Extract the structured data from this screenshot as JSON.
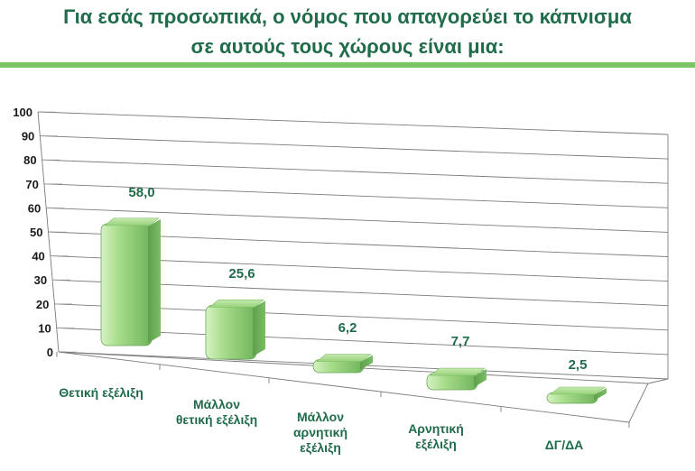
{
  "page": {
    "title_line1": "Για εσάς προσωπικά, ο νόμος που απαγορεύει το κάπνισμα",
    "title_line2": "σε αυτούς τους χώρους είναι μια:",
    "accent_color": "#7cc765",
    "title_color": "#1f6b4a"
  },
  "chart_data": {
    "type": "bar",
    "categories": [
      [
        "Θετική εξέλιξη"
      ],
      [
        "Μάλλον",
        "θετική εξέλιξη"
      ],
      [
        "Μάλλον",
        "αρνητική",
        "εξέλιξη"
      ],
      [
        "Αρνητική",
        "εξέλιξη"
      ],
      [
        "ΔΓ/ΔΑ"
      ]
    ],
    "values": [
      58.0,
      25.6,
      6.2,
      7.7,
      2.5
    ],
    "value_labels": [
      "58,0",
      "25,6",
      "6,2",
      "7,7",
      "2,5"
    ],
    "yticks": [
      "0",
      "10",
      "20",
      "30",
      "40",
      "50",
      "60",
      "70",
      "80",
      "90",
      "100"
    ],
    "ylim": [
      0,
      100
    ],
    "bar_color": "#a8dc8c",
    "grid": true,
    "style": "3d-perspective"
  }
}
